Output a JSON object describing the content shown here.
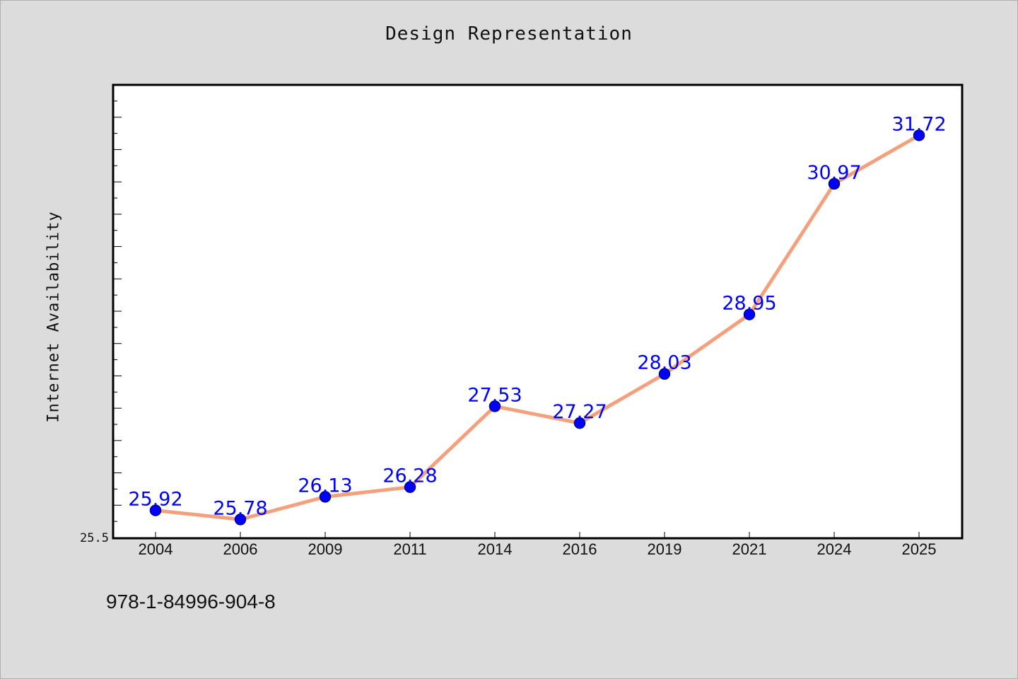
{
  "chart_data": {
    "type": "line",
    "title": "Design Representation",
    "xlabel": "",
    "ylabel": "Internet Availability",
    "categories": [
      "2004",
      "2006",
      "2009",
      "2011",
      "2014",
      "2016",
      "2019",
      "2021",
      "2024",
      "2025"
    ],
    "series": [
      {
        "values": [
          25.92,
          25.78,
          26.13,
          26.28,
          27.53,
          27.27,
          28.03,
          28.95,
          30.97,
          31.72
        ],
        "data_labels": [
          "25.92",
          "25.78",
          "26.13",
          "26.28",
          "27.53",
          "27.27",
          "28.03",
          "28.95",
          "30.97",
          "31.72"
        ]
      }
    ],
    "ylim": [
      25.5,
      32.5
    ],
    "y_tick_label": "25.5",
    "grid": false,
    "legend": "none",
    "colors": {
      "line": "#f5a07c",
      "marker": "#0000ff",
      "marker_edge": "#00008b",
      "data_label": "#0000ff",
      "plot_background": "#ffffff",
      "figure_background": "#dcdcdc"
    }
  },
  "footer": {
    "isbn": "978-1-84996-904-8"
  }
}
